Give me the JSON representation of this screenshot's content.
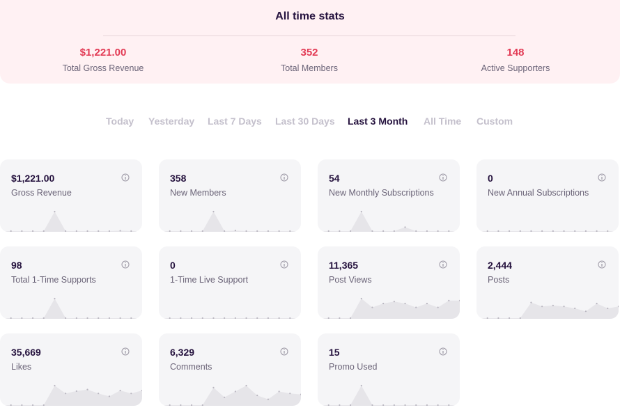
{
  "all_time": {
    "title": "All time stats",
    "stats": [
      {
        "value": "$1,221.00",
        "label": "Total Gross Revenue"
      },
      {
        "value": "352",
        "label": "Total Members"
      },
      {
        "value": "148",
        "label": "Active Supporters"
      }
    ]
  },
  "range_tabs": {
    "items": [
      "Today",
      "Yesterday",
      "Last 7 Days",
      "Last 30 Days",
      "Last 3 Month",
      "All Time",
      "Custom"
    ],
    "active": "Last 3 Month"
  },
  "cards": [
    {
      "value": "$1,221.00",
      "label": "Gross Revenue",
      "trend": [
        0,
        0,
        0,
        0,
        0,
        1,
        0,
        0,
        0,
        0,
        0,
        0.02,
        0,
        0
      ]
    },
    {
      "value": "358",
      "label": "New Members",
      "trend": [
        0,
        0,
        0,
        0,
        0,
        1,
        0,
        0.03,
        0,
        0,
        0,
        0,
        0,
        0
      ]
    },
    {
      "value": "54",
      "label": "New Monthly Subscriptions",
      "trend": [
        0,
        0,
        0,
        0,
        1,
        0,
        0,
        0,
        0.2,
        0,
        0,
        0,
        0,
        0
      ]
    },
    {
      "value": "0",
      "label": "New Annual Subscriptions",
      "trend": [
        0,
        0,
        0,
        0,
        0,
        0,
        0,
        0,
        0,
        0,
        0,
        0,
        0,
        0
      ]
    },
    {
      "value": "98",
      "label": "Total 1-Time Supports",
      "trend": [
        0,
        0,
        0,
        0,
        0,
        1,
        0,
        0,
        0,
        0,
        0,
        0,
        0,
        0
      ]
    },
    {
      "value": "0",
      "label": "1-Time Live Support",
      "trend": [
        0,
        0,
        0,
        0,
        0,
        0,
        0,
        0,
        0,
        0,
        0,
        0,
        0,
        0
      ]
    },
    {
      "value": "11,365",
      "label": "Post Views",
      "trend": [
        0,
        0,
        0,
        0,
        1,
        0.55,
        0.75,
        0.85,
        0.75,
        0.55,
        0.75,
        0.55,
        0.9,
        0.9
      ]
    },
    {
      "value": "2,444",
      "label": "Posts",
      "trend": [
        0,
        0,
        0,
        0,
        0,
        0.8,
        0.6,
        0.65,
        0.6,
        0.5,
        0.35,
        0.75,
        0.5,
        0.6
      ]
    },
    {
      "value": "35,669",
      "label": "Likes",
      "trend": [
        0,
        0,
        0,
        0,
        0,
        1,
        0.6,
        0.72,
        0.8,
        0.6,
        0.45,
        0.75,
        0.6,
        0.75
      ]
    },
    {
      "value": "6,329",
      "label": "Comments",
      "trend": [
        0,
        0,
        0,
        0,
        0,
        0.9,
        0.4,
        0.7,
        1,
        0.5,
        0.3,
        0.7,
        0.6,
        0.55
      ]
    },
    {
      "value": "15",
      "label": "Promo Used",
      "trend": [
        0,
        0,
        0,
        0,
        1,
        0,
        0,
        0,
        0,
        0,
        0,
        0,
        0,
        0
      ]
    }
  ]
}
